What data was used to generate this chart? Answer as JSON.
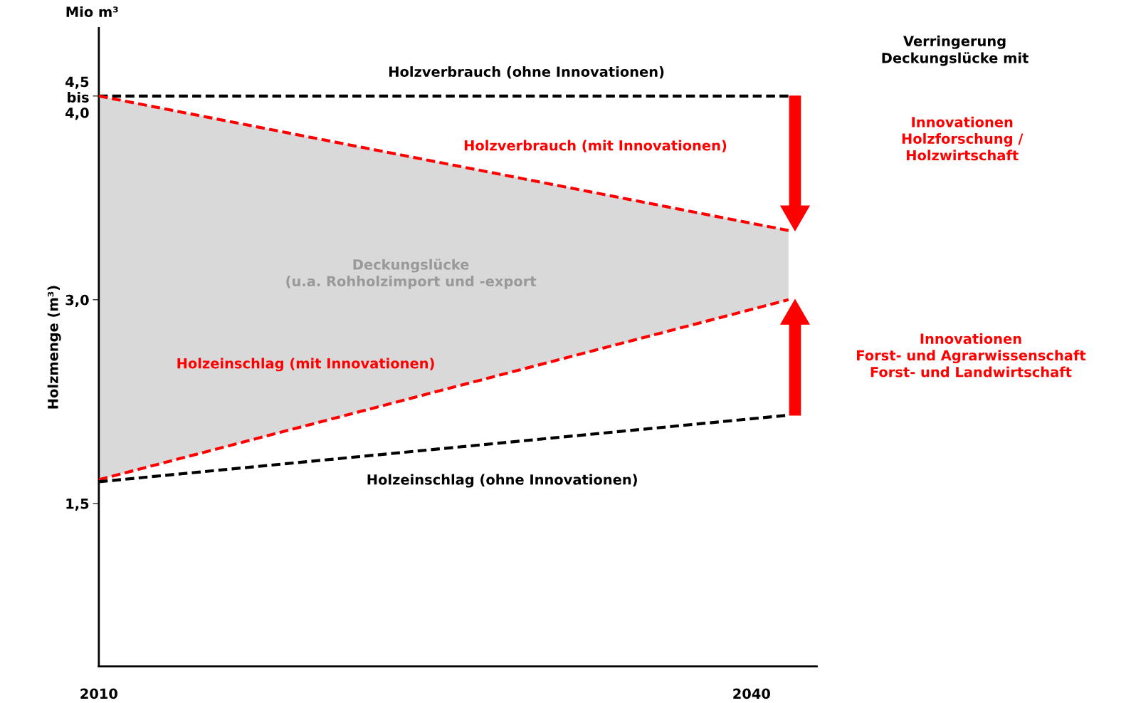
{
  "chart_data": {
    "type": "line",
    "ylabel": "Holzmenge (m³)",
    "xlim": [
      2010,
      2043
    ],
    "xticks": [
      2010,
      2040
    ],
    "ylim": [
      0.3,
      5.0
    ],
    "yticks": [
      {
        "value": 4.5,
        "label": "4,5\nbis\n4,0"
      },
      {
        "value": 3.0,
        "label": "3,0"
      },
      {
        "value": 1.5,
        "label": "1,5"
      }
    ],
    "grid": false,
    "x": [
      2010,
      2041.7
    ],
    "legend": false,
    "line_style": "dashed",
    "marker": "none",
    "series": [
      {
        "name": "Holzverbrauch (ohne Innovationen)",
        "color": "#000000",
        "values": [
          4.5,
          4.5
        ]
      },
      {
        "name": "Holzverbrauch (mit Innovationen)",
        "color": "#ff0000",
        "values": [
          4.5,
          3.51
        ]
      },
      {
        "name": "Holzeinschlag (mit Innovationen)",
        "color": "#ff0000",
        "values": [
          1.675,
          3.0
        ]
      },
      {
        "name": "Holzeinschlag (ohne Innovationen)",
        "color": "#000000",
        "values": [
          1.66,
          2.15
        ]
      }
    ],
    "annotations": [
      "Mio m³",
      "Verringerung\nDeckungslücke mit",
      "Innovationen\nHolzforschung /\nHolzwirtschaft",
      "Innovationen\nForst- und Agrarwissenschaft\nForst- und Landwirtschaft",
      "Deckungslücke\n(u.a. Rohholzimport und -export"
    ]
  }
}
